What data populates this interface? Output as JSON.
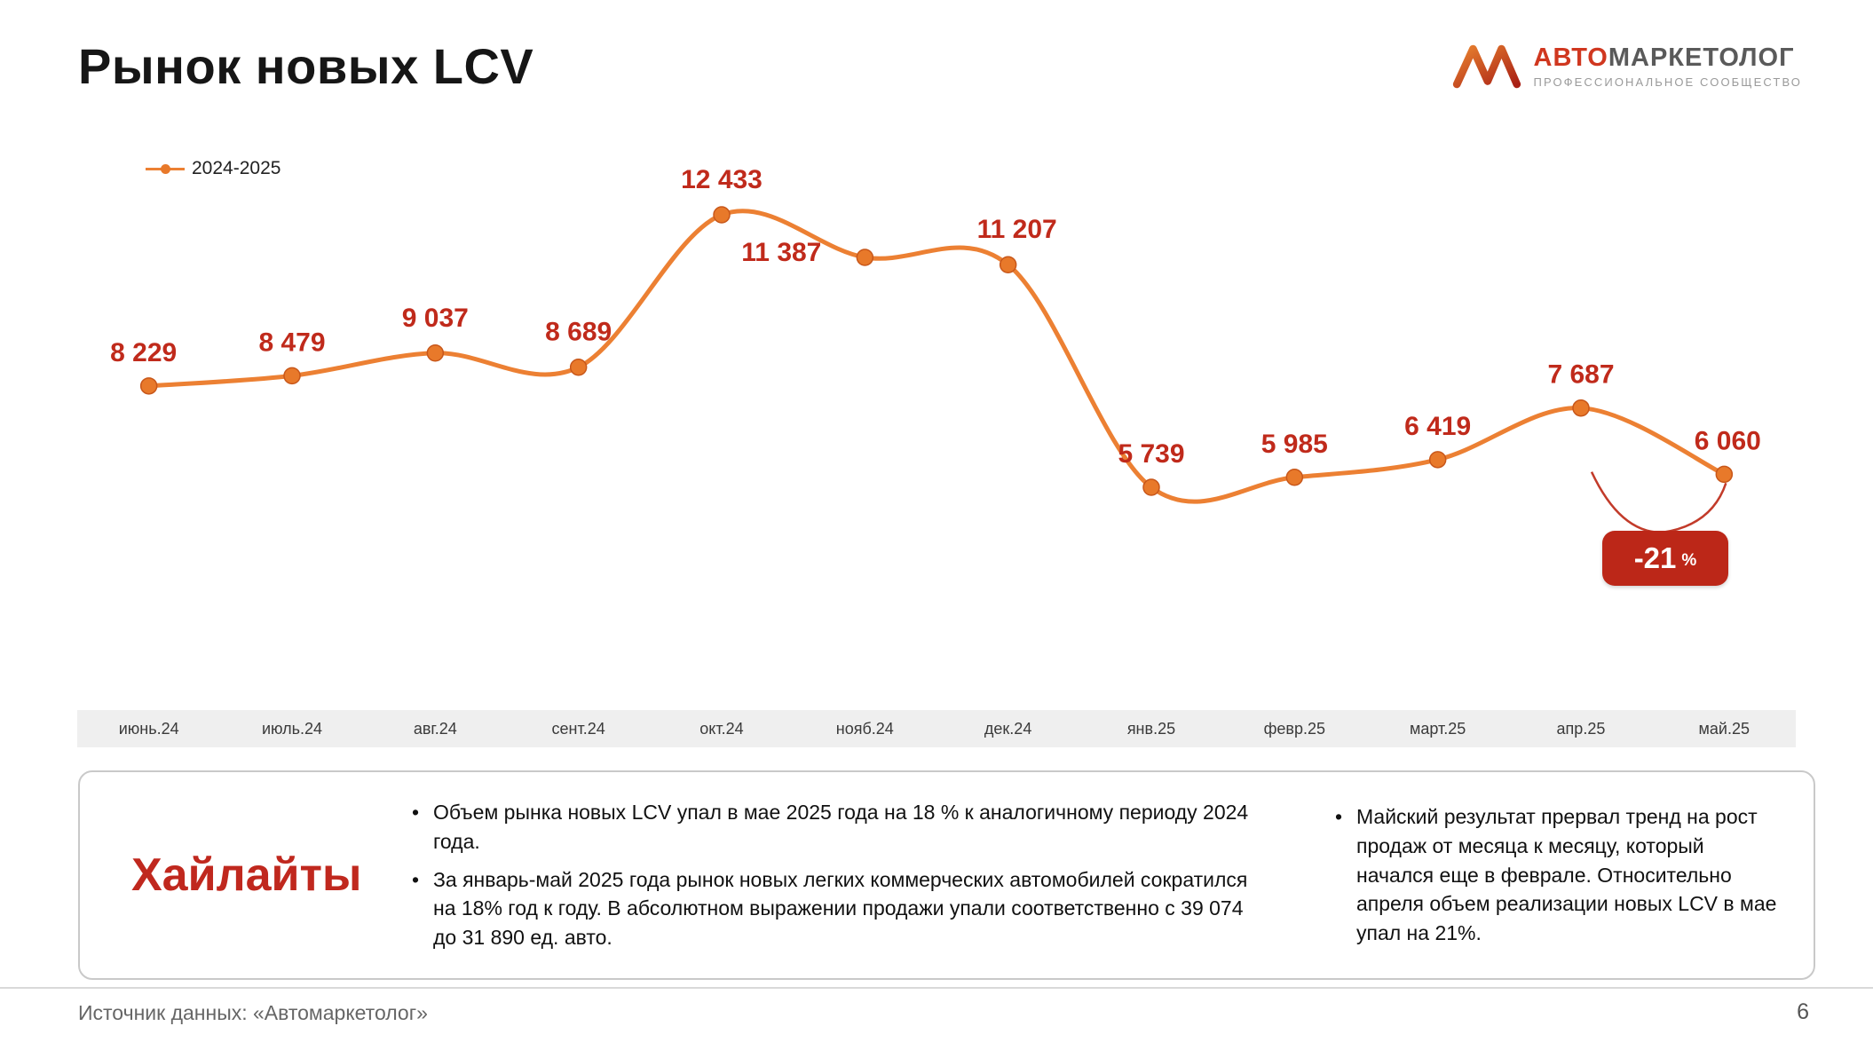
{
  "header": {
    "title": "Рынок новых LCV",
    "logo": {
      "brand_accent": "АВТО",
      "brand_rest": "МАРКЕТОЛОГ",
      "tagline": "ПРОФЕССИОНАЛЬНОЕ СООБЩЕСТВО"
    }
  },
  "chart_data": {
    "type": "line",
    "title": "",
    "legend_position": "top-left",
    "grid": false,
    "categories": [
      "июнь.24",
      "июль.24",
      "авг.24",
      "сент.24",
      "окт.24",
      "нояб.24",
      "дек.24",
      "янв.25",
      "февр.25",
      "март.25",
      "апр.25",
      "май.25"
    ],
    "series": [
      {
        "name": "2024-2025",
        "values": [
          8229,
          8479,
          9037,
          8689,
          12433,
          11387,
          11207,
          5739,
          5985,
          6419,
          7687,
          6060
        ]
      }
    ],
    "point_labels": [
      "8 229",
      "8 479",
      "9 037",
      "8 689",
      "12 433",
      "11 387",
      "11 207",
      "5 739",
      "5 985",
      "6 419",
      "7 687",
      "6 060"
    ],
    "ylim": [
      5500,
      13000
    ],
    "annotation": {
      "label": "-21",
      "unit": "%",
      "connects": [
        "апр.25",
        "май.25"
      ]
    },
    "colors": {
      "line": "#EC8033",
      "marker": "#E8792A",
      "marker_ring": "#C8571A",
      "point_label": "#C02A1B",
      "bracket": "#C23B2A",
      "badge_bg": "#BC2718",
      "badge_text": "#FFFFFF",
      "axis_band": "#EFEFEF"
    }
  },
  "highlights": {
    "title": "Хайлайты",
    "left_bullets": [
      "Объем рынка новых LCV упал в мае 2025 года на 18 % к аналогичному периоду 2024 года.",
      "За январь-май 2025 года рынок новых легких коммерческих автомобилей сократился на 18% год к году. В абсолютном выражении продажи упали соответственно с 39 074 до 31 890 ед. авто."
    ],
    "right_bullets": [
      "Майский результат прервал тренд на рост продаж от месяца к месяцу, который начался еще в феврале. Относительно апреля объем реализации новых LCV в мае упал на 21%."
    ]
  },
  "footer": {
    "source": "Источник данных: «Автомаркетолог»",
    "page_number": "6"
  }
}
